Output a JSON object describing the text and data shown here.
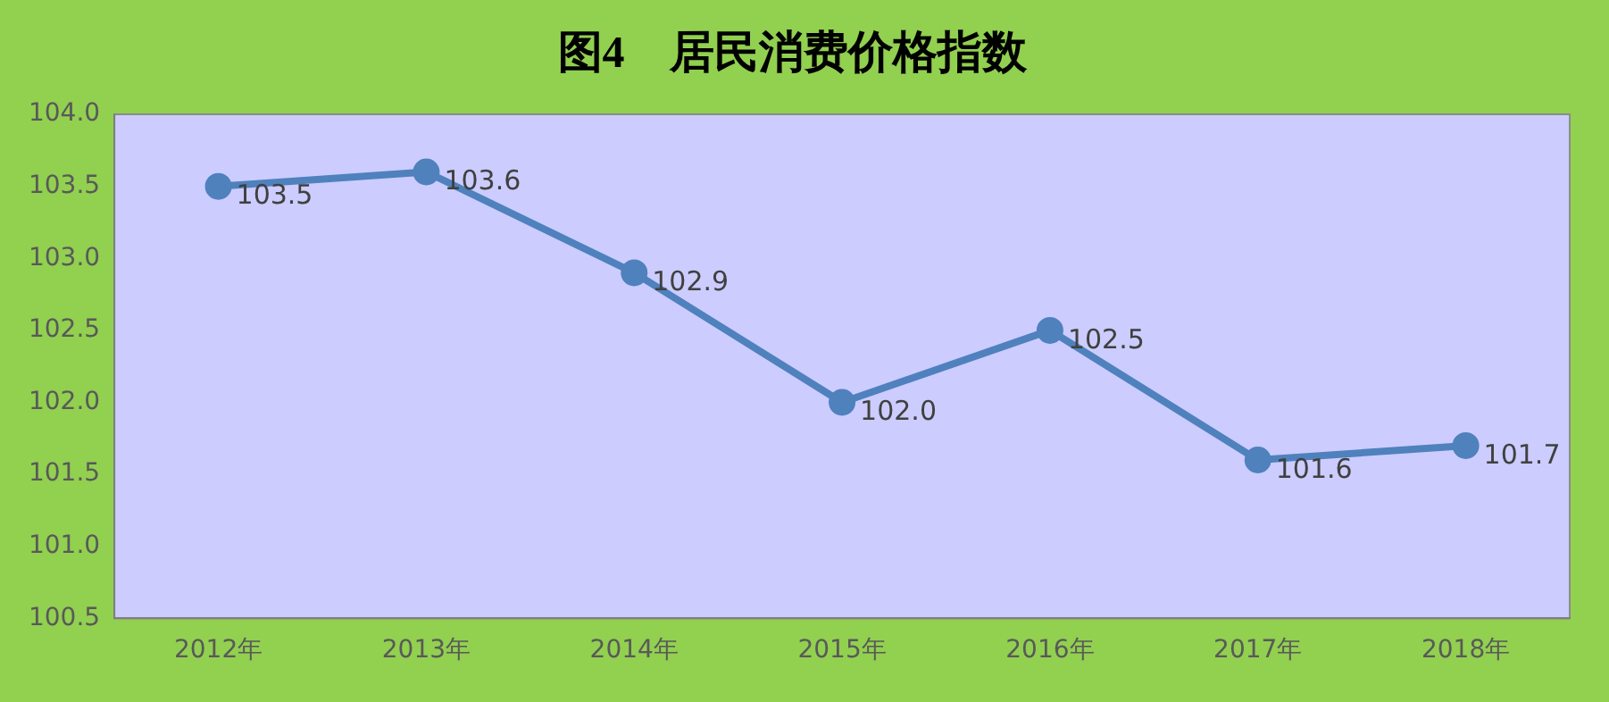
{
  "chart_data": {
    "type": "line",
    "title": "图4　居民消费价格指数",
    "categories": [
      "2012年",
      "2013年",
      "2014年",
      "2015年",
      "2016年",
      "2017年",
      "2018年"
    ],
    "series": [
      {
        "color": "#4f81bd",
        "values": [
          103.5,
          103.6,
          102.9,
          102.0,
          102.5,
          101.6,
          101.7
        ],
        "value_labels": [
          "103.5",
          "103.6",
          "102.9",
          "102.0",
          "102.5",
          "101.6",
          "101.7"
        ]
      }
    ],
    "ylim": [
      100.5,
      104.0
    ],
    "yticks": [
      {
        "value": 100.5,
        "label": "100.5"
      },
      {
        "value": 101,
        "label": "101.0"
      },
      {
        "value": 101.5,
        "label": "101.5"
      },
      {
        "value": 102,
        "label": "102.0"
      },
      {
        "value": 102.5,
        "label": "102.5"
      },
      {
        "value": 103,
        "label": "103.0"
      },
      {
        "value": 103.5,
        "label": "103.5"
      },
      {
        "value": 104,
        "label": "104.0"
      }
    ],
    "marker": "circle",
    "line_style": "solid",
    "grid": false,
    "legend": false
  }
}
